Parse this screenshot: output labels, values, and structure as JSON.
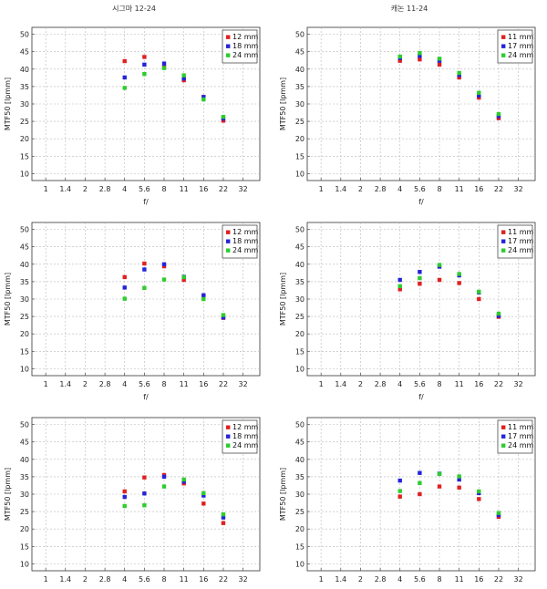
{
  "columns": [
    {
      "title": "시그마 12-24"
    },
    {
      "title": "캐논 11-24"
    }
  ],
  "colors": {
    "red": "#e02020",
    "blue": "#2424d8",
    "green": "#2ecc2e",
    "grid": "#b8b8b8"
  },
  "chart_data": [
    {
      "type": "scatter",
      "title": "시그마 12-24",
      "xlabel": "f/",
      "ylabel": "MTF50 [lpmm]",
      "ylim": [
        8,
        52
      ],
      "x_categories": [
        "1",
        "1.4",
        "2",
        "2.8",
        "4",
        "5.6",
        "8",
        "11",
        "16",
        "22",
        "32"
      ],
      "legend": {
        "position": "top-right"
      },
      "series": [
        {
          "name": "12 mm",
          "color": "#e02020",
          "x": [
            "4",
            "5.6",
            "8",
            "11",
            "16",
            "22"
          ],
          "values": [
            42.3,
            43.5,
            40.6,
            36.8,
            32.0,
            25.2
          ]
        },
        {
          "name": "18 mm",
          "color": "#2424d8",
          "x": [
            "4",
            "5.6",
            "8",
            "11",
            "16",
            "22"
          ],
          "values": [
            37.6,
            41.3,
            41.6,
            37.3,
            32.0,
            25.8
          ]
        },
        {
          "name": "24 mm",
          "color": "#2ecc2e",
          "x": [
            "4",
            "5.6",
            "8",
            "11",
            "16",
            "22"
          ],
          "values": [
            34.6,
            38.6,
            40.3,
            38.2,
            31.3,
            26.3
          ]
        }
      ]
    },
    {
      "type": "scatter",
      "title": "캐논 11-24",
      "xlabel": "f/",
      "ylabel": "MTF50 [lpmm]",
      "ylim": [
        8,
        52
      ],
      "x_categories": [
        "1",
        "1.4",
        "2",
        "2.8",
        "4",
        "5.6",
        "8",
        "11",
        "16",
        "22",
        "32"
      ],
      "legend": {
        "position": "top-right"
      },
      "series": [
        {
          "name": "11 mm",
          "color": "#e02020",
          "x": [
            "4",
            "5.6",
            "8",
            "11",
            "16",
            "22"
          ],
          "values": [
            42.4,
            42.8,
            41.3,
            37.6,
            31.8,
            25.9
          ]
        },
        {
          "name": "17 mm",
          "color": "#2424d8",
          "x": [
            "4",
            "5.6",
            "8",
            "11",
            "16",
            "22"
          ],
          "values": [
            43.2,
            43.8,
            42.4,
            38.3,
            32.4,
            26.5
          ]
        },
        {
          "name": "24 mm",
          "color": "#2ecc2e",
          "x": [
            "4",
            "5.6",
            "8",
            "11",
            "16",
            "22"
          ],
          "values": [
            43.6,
            44.6,
            43.0,
            38.9,
            33.2,
            27.1
          ]
        }
      ]
    },
    {
      "type": "scatter",
      "title": "",
      "xlabel": "f/",
      "ylabel": "MTF50 [lpmm]",
      "ylim": [
        8,
        52
      ],
      "x_categories": [
        "1",
        "1.4",
        "2",
        "2.8",
        "4",
        "5.6",
        "8",
        "11",
        "16",
        "22",
        "32"
      ],
      "legend": {
        "position": "top-right"
      },
      "series": [
        {
          "name": "12 mm",
          "color": "#e02020",
          "x": [
            "4",
            "5.6",
            "8",
            "11",
            "16",
            "22"
          ],
          "values": [
            36.3,
            40.2,
            39.4,
            35.5,
            30.7,
            24.6
          ]
        },
        {
          "name": "18 mm",
          "color": "#2424d8",
          "x": [
            "4",
            "5.6",
            "8",
            "11",
            "16",
            "22"
          ],
          "values": [
            33.3,
            38.5,
            40.0,
            36.4,
            31.1,
            24.7
          ]
        },
        {
          "name": "24 mm",
          "color": "#2ecc2e",
          "x": [
            "4",
            "5.6",
            "8",
            "11",
            "16",
            "22"
          ],
          "values": [
            30.1,
            33.2,
            35.6,
            36.3,
            30.0,
            25.4
          ]
        }
      ]
    },
    {
      "type": "scatter",
      "title": "",
      "xlabel": "f/",
      "ylabel": "MTF50 [lpmm]",
      "ylim": [
        8,
        52
      ],
      "x_categories": [
        "1",
        "1.4",
        "2",
        "2.8",
        "4",
        "5.6",
        "8",
        "11",
        "16",
        "22",
        "32"
      ],
      "legend": {
        "position": "top-right"
      },
      "series": [
        {
          "name": "11 mm",
          "color": "#e02020",
          "x": [
            "4",
            "5.6",
            "8",
            "11",
            "16",
            "22"
          ],
          "values": [
            32.8,
            34.4,
            35.5,
            34.6,
            30.0,
            24.9
          ]
        },
        {
          "name": "17 mm",
          "color": "#2424d8",
          "x": [
            "4",
            "5.6",
            "8",
            "11",
            "16",
            "22"
          ],
          "values": [
            35.5,
            37.8,
            39.3,
            36.8,
            31.9,
            25.2
          ]
        },
        {
          "name": "24 mm",
          "color": "#2ecc2e",
          "x": [
            "4",
            "5.6",
            "8",
            "11",
            "16",
            "22"
          ],
          "values": [
            33.7,
            36.0,
            39.8,
            37.2,
            32.1,
            25.8
          ]
        }
      ]
    },
    {
      "type": "scatter",
      "title": "",
      "xlabel": "f/",
      "ylabel": "MTF50 [lpmm]",
      "ylim": [
        8,
        52
      ],
      "x_categories": [
        "1",
        "1.4",
        "2",
        "2.8",
        "4",
        "5.6",
        "8",
        "11",
        "16",
        "22",
        "32"
      ],
      "legend": {
        "position": "top-right"
      },
      "series": [
        {
          "name": "12 mm",
          "color": "#e02020",
          "x": [
            "4",
            "5.6",
            "8",
            "11",
            "16",
            "22"
          ],
          "values": [
            30.8,
            34.8,
            35.5,
            33.1,
            27.3,
            21.7
          ]
        },
        {
          "name": "18 mm",
          "color": "#2424d8",
          "x": [
            "4",
            "5.6",
            "8",
            "11",
            "16",
            "22"
          ],
          "values": [
            29.2,
            30.2,
            35.0,
            33.6,
            29.6,
            23.3
          ]
        },
        {
          "name": "24 mm",
          "color": "#2ecc2e",
          "x": [
            "4",
            "5.6",
            "8",
            "11",
            "16",
            "22"
          ],
          "values": [
            26.6,
            26.8,
            32.2,
            34.2,
            30.3,
            24.2
          ]
        }
      ]
    },
    {
      "type": "scatter",
      "title": "",
      "xlabel": "f/",
      "ylabel": "MTF50 [lpmm]",
      "ylim": [
        8,
        52
      ],
      "x_categories": [
        "1",
        "1.4",
        "2",
        "2.8",
        "4",
        "5.6",
        "8",
        "11",
        "16",
        "22",
        "32"
      ],
      "legend": {
        "position": "top-right"
      },
      "series": [
        {
          "name": "11 mm",
          "color": "#e02020",
          "x": [
            "4",
            "5.6",
            "8",
            "11",
            "16",
            "22"
          ],
          "values": [
            29.3,
            30.0,
            32.2,
            31.9,
            28.6,
            23.5
          ]
        },
        {
          "name": "17 mm",
          "color": "#2424d8",
          "x": [
            "4",
            "5.6",
            "8",
            "11",
            "16",
            "22"
          ],
          "values": [
            33.9,
            36.1,
            35.9,
            34.2,
            30.3,
            24.0
          ]
        },
        {
          "name": "24 mm",
          "color": "#2ecc2e",
          "x": [
            "4",
            "5.6",
            "8",
            "11",
            "16",
            "22"
          ],
          "values": [
            30.9,
            33.2,
            35.8,
            35.1,
            30.8,
            24.6
          ]
        }
      ]
    }
  ]
}
